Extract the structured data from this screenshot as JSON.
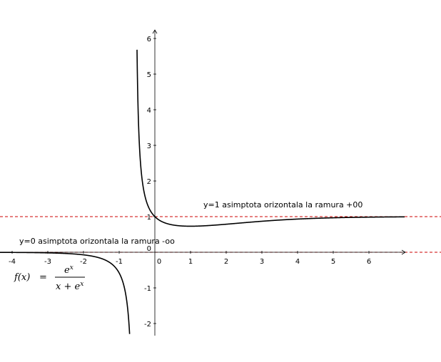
{
  "chart_data": {
    "type": "line",
    "function": "f(x) = e^x / (x + e^x)",
    "xlim": [
      -4.4,
      7.0
    ],
    "ylim": [
      -2.3,
      6.3
    ],
    "x_ticks": [
      "-4",
      "-3",
      "-2",
      "-1",
      "0",
      "1",
      "2",
      "3",
      "4",
      "5",
      "6"
    ],
    "y_ticks": [
      "-2",
      "-1",
      "0",
      "1",
      "2",
      "3",
      "4",
      "5",
      "6"
    ],
    "asymptotes": [
      {
        "type": "horizontal",
        "y": 1,
        "label": "y=1 asimptota orizontala la ramura +00",
        "color": "#cc0000"
      },
      {
        "type": "horizontal",
        "y": 0,
        "label": "y=0 asimptota orizontala la ramura -oo",
        "color": "#cc0000"
      }
    ],
    "curve_color": "#000000",
    "formula": {
      "lhs": "f(x)",
      "equals": "=",
      "numerator_base": "e",
      "numerator_exp": "x",
      "denominator": "x + e",
      "denominator_exp": "x"
    }
  }
}
